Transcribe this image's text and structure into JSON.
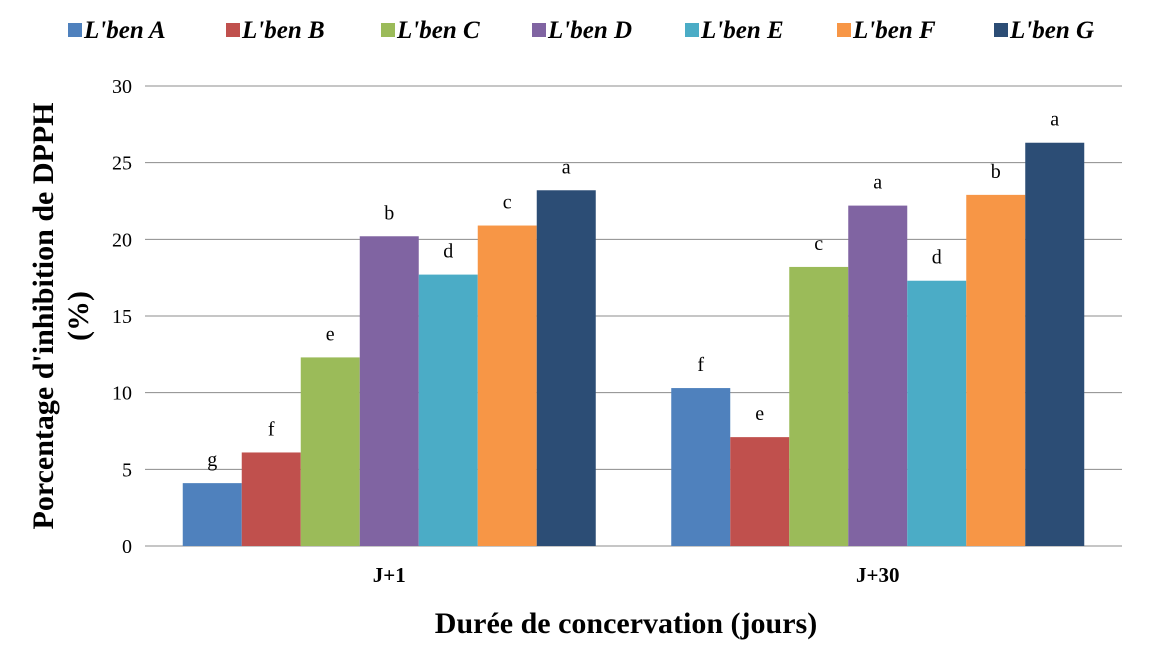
{
  "chart_data": {
    "type": "bar",
    "categories": [
      "J+1",
      "J+30"
    ],
    "xlabel": "Durée de concervation (jours)",
    "ylabel_line1": "Porcentage d'inhibition de DPPH",
    "ylabel_line2": "(%)",
    "ylim": [
      0,
      30
    ],
    "yticks": [
      0,
      5,
      10,
      15,
      20,
      25,
      30
    ],
    "grid": true,
    "legend_position": "top",
    "series": [
      {
        "name": "L'ben A",
        "color": "#4f81bd",
        "values": [
          4.1,
          10.3
        ],
        "labels": [
          "g",
          "f"
        ]
      },
      {
        "name": "L'ben B",
        "color": "#c0504d",
        "values": [
          6.1,
          7.1
        ],
        "labels": [
          "f",
          "e"
        ]
      },
      {
        "name": "L'ben C",
        "color": "#9bbb59",
        "values": [
          12.3,
          18.2
        ],
        "labels": [
          "e",
          "c"
        ]
      },
      {
        "name": "L'ben D",
        "color": "#8064a2",
        "values": [
          20.2,
          22.2
        ],
        "labels": [
          "b",
          "a"
        ]
      },
      {
        "name": "L'ben E",
        "color": "#4bacc6",
        "values": [
          17.7,
          17.3
        ],
        "labels": [
          "d",
          "d"
        ]
      },
      {
        "name": "L'ben F",
        "color": "#f79646",
        "values": [
          20.9,
          22.9
        ],
        "labels": [
          "c",
          "b"
        ]
      },
      {
        "name": "L'ben G",
        "color": "#2c4d75",
        "values": [
          23.2,
          26.3
        ],
        "labels": [
          "a",
          "a"
        ]
      }
    ]
  }
}
